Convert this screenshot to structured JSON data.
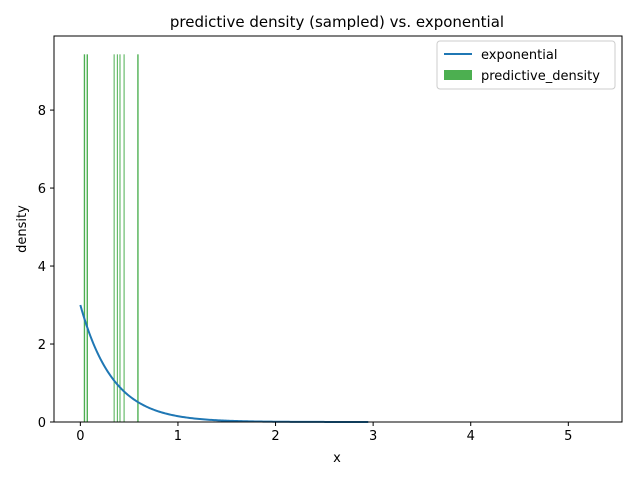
{
  "chart_data": {
    "type": "bar+line",
    "title": "predictive density (sampled) vs. exponential",
    "xlabel": "x",
    "ylabel": "density",
    "xlim": [
      -0.27,
      5.55
    ],
    "ylim": [
      0,
      9.9
    ],
    "xticks": [
      0,
      1,
      2,
      3,
      4,
      5
    ],
    "xtick_labels": [
      "0",
      "1",
      "2",
      "3",
      "4",
      "5"
    ],
    "yticks": [
      0,
      2,
      4,
      6,
      8
    ],
    "ytick_labels": [
      "0",
      "2",
      "4",
      "6",
      "8"
    ],
    "grid": false,
    "legend_position": "top-right",
    "series": [
      {
        "name": "exponential",
        "kind": "line",
        "color": "#1f77b4",
        "function": "3*exp(-3x)",
        "rate": 3,
        "x_range": [
          0,
          2.95
        ]
      },
      {
        "name": "predictive_density",
        "kind": "bar",
        "color": "#4caf50",
        "bars": [
          {
            "x": 0.042,
            "width": 0.014,
            "height": 9.43
          },
          {
            "x": 0.071,
            "width": 0.014,
            "height": 9.43
          },
          {
            "x": 0.345,
            "width": 0.008,
            "height": 9.43
          },
          {
            "x": 0.378,
            "width": 0.008,
            "height": 9.43
          },
          {
            "x": 0.405,
            "width": 0.008,
            "height": 9.43
          },
          {
            "x": 0.447,
            "width": 0.008,
            "height": 9.43
          },
          {
            "x": 0.59,
            "width": 0.014,
            "height": 9.43
          }
        ]
      }
    ]
  }
}
